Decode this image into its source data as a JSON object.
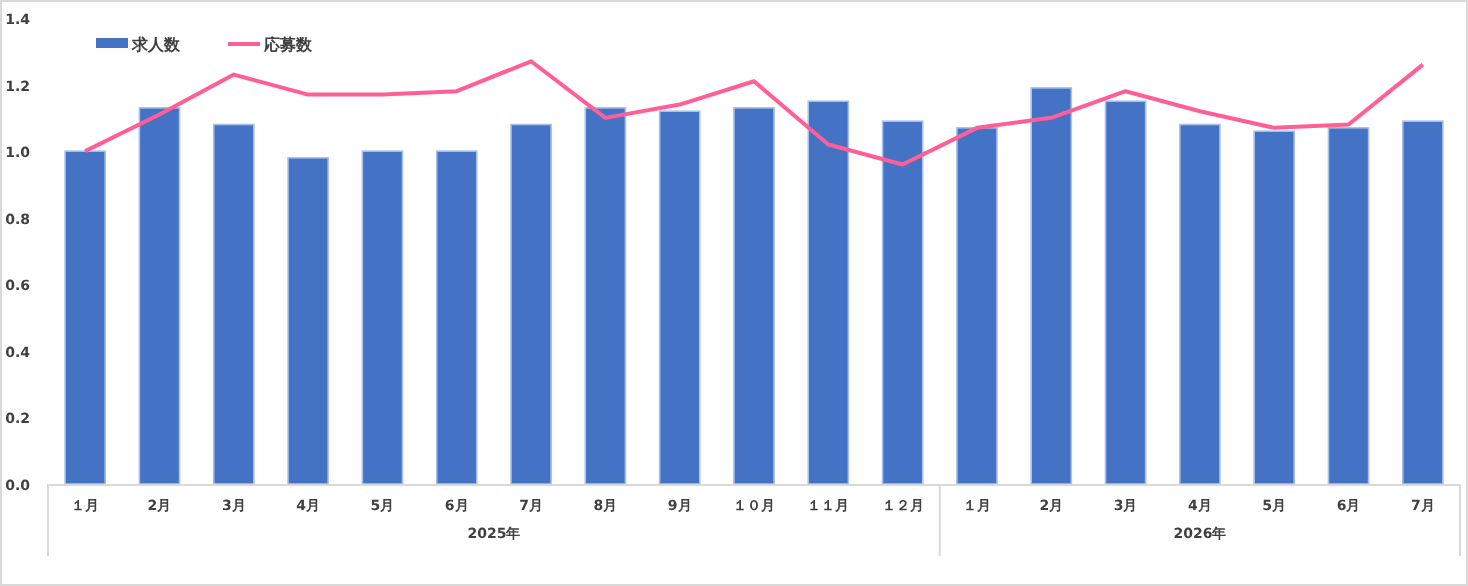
{
  "chart_data": {
    "type": "bar",
    "categories": [
      "１月",
      "2月",
      "3月",
      "4月",
      "5月",
      "6月",
      "7月",
      "8月",
      "9月",
      "１０月",
      "１１月",
      "１２月",
      "１月",
      "2月",
      "3月",
      "4月",
      "5月",
      "6月",
      "7月"
    ],
    "series": [
      {
        "name": "求人数",
        "color": "#4472c4",
        "values": [
          1.0,
          1.13,
          1.08,
          0.98,
          1.0,
          1.0,
          1.08,
          1.13,
          1.12,
          1.13,
          1.15,
          1.09,
          1.07,
          1.19,
          1.15,
          1.08,
          1.06,
          1.07,
          1.09
        ]
      },
      {
        "name": "応募数",
        "type": "line",
        "color": "#ff5f96",
        "values": [
          1.0,
          1.11,
          1.23,
          1.17,
          1.17,
          1.18,
          1.27,
          1.1,
          1.14,
          1.21,
          1.02,
          0.96,
          1.07,
          1.1,
          1.18,
          1.12,
          1.07,
          1.08,
          1.26
        ]
      }
    ],
    "annotations": [
      "2025年",
      "2026年"
    ],
    "ylim": [
      0,
      1.4
    ],
    "yticks": [
      {
        "value": 0,
        "label": "0.0"
      },
      {
        "value": 0.2,
        "label": "0.2"
      },
      {
        "value": 0.4,
        "label": "0.4"
      },
      {
        "value": 0.6,
        "label": "0.6"
      },
      {
        "value": 0.8,
        "label": "0.8"
      },
      {
        "value": 1.0,
        "label": "1.0"
      },
      {
        "value": 1.2,
        "label": "1.2"
      },
      {
        "value": 1.4,
        "label": "1.4"
      }
    ],
    "grid": false,
    "legend": "top left",
    "marker": "none",
    "line_style": "solid"
  }
}
